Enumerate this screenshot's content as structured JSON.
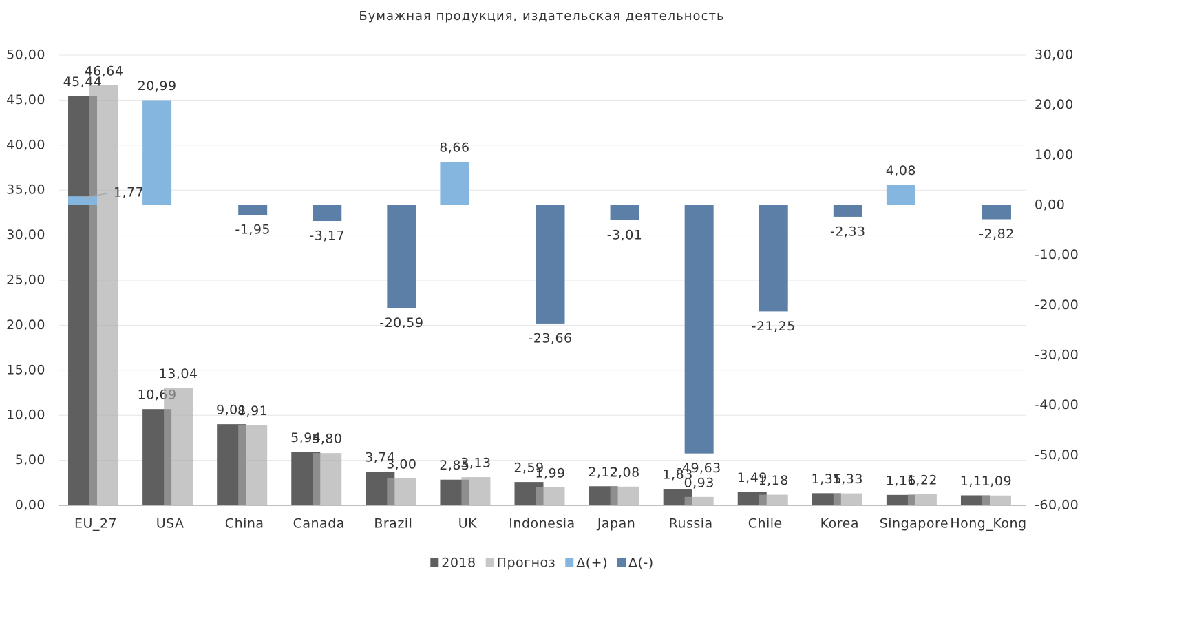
{
  "chart_data": {
    "type": "bar",
    "title": "Бумажная продукция, издательская деятельность",
    "categories": [
      "EU_27",
      "USA",
      "China",
      "Canada",
      "Brazil",
      "UK",
      "Indonesia",
      "Japan",
      "Russia",
      "Chile",
      "Korea",
      "Singapore",
      "Hong_Kong"
    ],
    "series": [
      {
        "name": "2018",
        "color": "#5f5f5f",
        "axis": "y",
        "values": [
          45.44,
          10.69,
          9.01,
          5.94,
          3.74,
          2.85,
          2.59,
          2.12,
          1.83,
          1.49,
          1.35,
          1.16,
          1.11
        ],
        "value_labels": [
          "45,44",
          "10,69",
          "9,01",
          "5,94",
          "3,74",
          "2,85",
          "2,59",
          "2,12",
          "1,83",
          "1,49",
          "1,35",
          "1,16",
          "1,11"
        ]
      },
      {
        "name": "Прогноз",
        "color": "#c8c8c8",
        "axis": "y",
        "values": [
          46.64,
          13.04,
          8.91,
          5.8,
          3.0,
          3.13,
          1.99,
          2.08,
          0.93,
          1.18,
          1.33,
          1.22,
          1.09
        ],
        "value_labels": [
          "46,64",
          "13,04",
          "8,91",
          "5,80",
          "3,00",
          "3,13",
          "1,99",
          "2,08",
          "0,93",
          "1,18",
          "1,33",
          "1,22",
          "1,09"
        ]
      },
      {
        "name": "Δ(+)",
        "color": "#85b6e0",
        "axis": "y2",
        "values": [
          1.77,
          20.99,
          null,
          null,
          null,
          8.66,
          null,
          null,
          null,
          null,
          null,
          4.08,
          null
        ],
        "value_labels": [
          "1,77",
          "20,99",
          null,
          null,
          null,
          "8,66",
          null,
          null,
          null,
          null,
          null,
          "4,08",
          null
        ]
      },
      {
        "name": "Δ(-)",
        "color": "#5b7fa6",
        "axis": "y2",
        "values": [
          null,
          null,
          -1.95,
          -3.17,
          -20.59,
          null,
          -23.66,
          -3.01,
          -49.63,
          -21.25,
          -2.33,
          null,
          -2.82
        ],
        "value_labels": [
          null,
          null,
          "-1,95",
          "-3,17",
          "-20,59",
          null,
          "-23,66",
          "-3,01",
          "-49,63",
          "-21,25",
          "-2,33",
          null,
          "-2,82"
        ]
      }
    ],
    "ylim": [
      0,
      50
    ],
    "yticks": [
      {
        "value": 0,
        "label": "0,00"
      },
      {
        "value": 5,
        "label": "5,00"
      },
      {
        "value": 10,
        "label": "10,00"
      },
      {
        "value": 15,
        "label": "15,00"
      },
      {
        "value": 20,
        "label": "20,00"
      },
      {
        "value": 25,
        "label": "25,00"
      },
      {
        "value": 30,
        "label": "30,00"
      },
      {
        "value": 35,
        "label": "35,00"
      },
      {
        "value": 40,
        "label": "40,00"
      },
      {
        "value": 45,
        "label": "45,00"
      },
      {
        "value": 50,
        "label": "50,00"
      }
    ],
    "y2lim": [
      -60,
      30
    ],
    "y2ticks": [
      {
        "value": -60,
        "label": "-60,00"
      },
      {
        "value": -50,
        "label": "-50,00"
      },
      {
        "value": -40,
        "label": "-40,00"
      },
      {
        "value": -30,
        "label": "-30,00"
      },
      {
        "value": -20,
        "label": "-20,00"
      },
      {
        "value": -10,
        "label": "-10,00"
      },
      {
        "value": 0,
        "label": "0,00"
      },
      {
        "value": 10,
        "label": "10,00"
      },
      {
        "value": 20,
        "label": "20,00"
      },
      {
        "value": 30,
        "label": "30,00"
      }
    ],
    "grid": true,
    "legend": "bottom"
  }
}
